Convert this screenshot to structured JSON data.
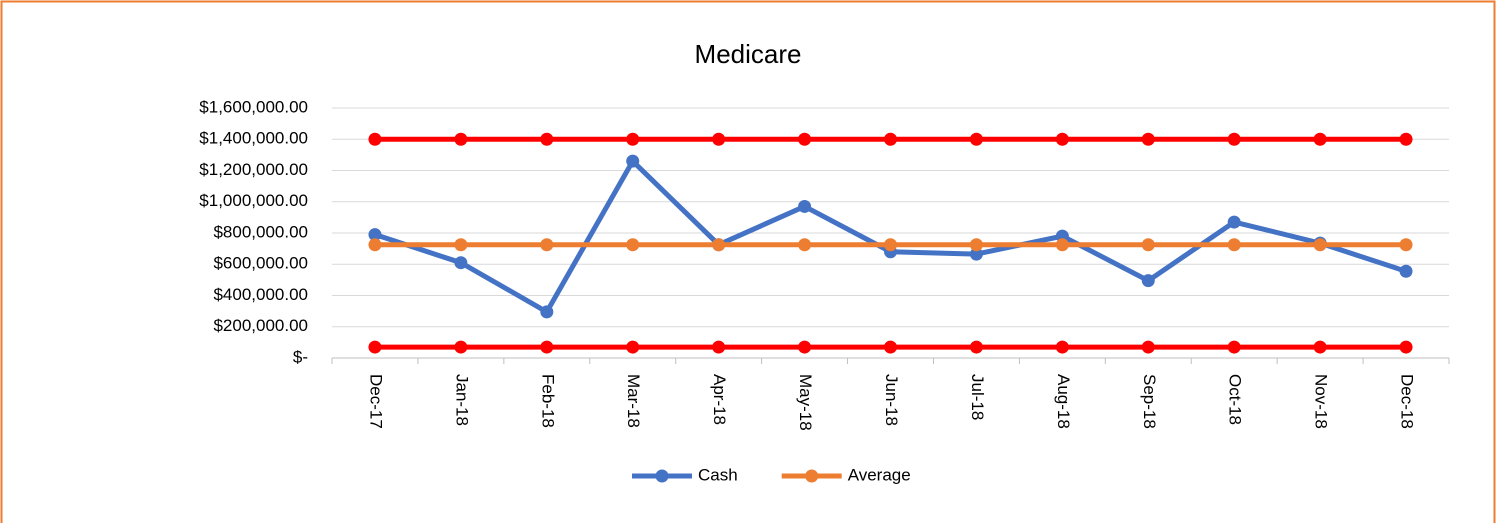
{
  "chart_data": {
    "type": "line",
    "title": "Medicare",
    "categories": [
      "Dec-17",
      "Jan-18",
      "Feb-18",
      "Mar-18",
      "Apr-18",
      "May-18",
      "Jun-18",
      "Jul-18",
      "Aug-18",
      "Sep-18",
      "Oct-18",
      "Nov-18",
      "Dec-18"
    ],
    "series": [
      {
        "color": "#ff0000",
        "values": [
          1400000,
          1400000,
          1400000,
          1400000,
          1400000,
          1400000,
          1400000,
          1400000,
          1400000,
          1400000,
          1400000,
          1400000,
          1400000
        ]
      },
      {
        "color": "#ff0000",
        "values": [
          70000,
          70000,
          70000,
          70000,
          70000,
          70000,
          70000,
          70000,
          70000,
          70000,
          70000,
          70000,
          70000
        ]
      },
      {
        "name": "Cash",
        "color": "#4472c4",
        "values": [
          790000,
          610000,
          295000,
          1260000,
          725000,
          970000,
          680000,
          665000,
          780000,
          495000,
          870000,
          735000,
          555000
        ]
      },
      {
        "name": "Average",
        "color": "#ed7d31",
        "values": [
          725000,
          725000,
          725000,
          725000,
          725000,
          725000,
          725000,
          725000,
          725000,
          725000,
          725000,
          725000,
          725000
        ]
      }
    ],
    "ylim": [
      0,
      1600000
    ],
    "yticks": [
      {
        "value": 0,
        "label": "$-"
      },
      {
        "value": 200000,
        "label": "$200,000.00"
      },
      {
        "value": 400000,
        "label": "$400,000.00"
      },
      {
        "value": 600000,
        "label": "$600,000.00"
      },
      {
        "value": 800000,
        "label": "$800,000.00"
      },
      {
        "value": 1000000,
        "label": "$1,000,000.00"
      },
      {
        "value": 1200000,
        "label": "$1,200,000.00"
      },
      {
        "value": 1400000,
        "label": "$1,400,000.00"
      },
      {
        "value": 1600000,
        "label": "$1,600,000.00"
      }
    ],
    "grid": true,
    "legend": "bottom"
  }
}
